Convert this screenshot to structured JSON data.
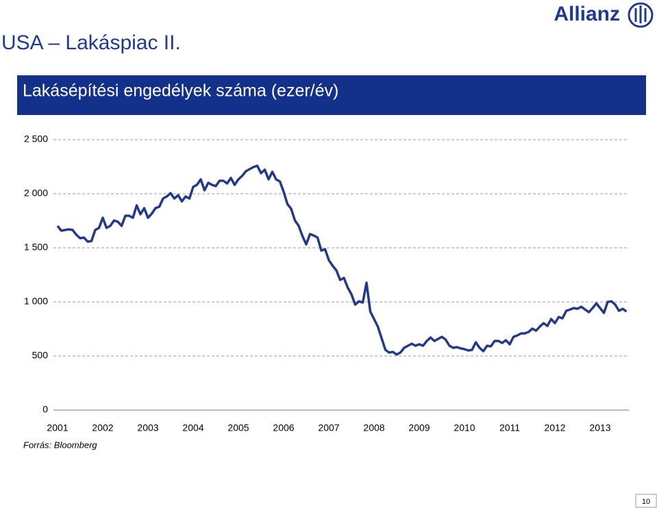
{
  "slide_title": "USA – Lakáspiac II.",
  "logo": "Allianz",
  "source": "Forrás: Bloomberg",
  "page_number": "10",
  "chart_data": {
    "type": "line",
    "title": "Lakásépítési engedélyek száma (ezer/év)",
    "categories": [
      "2001",
      null,
      null,
      null,
      null,
      null,
      null,
      null,
      null,
      null,
      null,
      null,
      "2002",
      null,
      null,
      null,
      null,
      null,
      null,
      null,
      null,
      null,
      null,
      null,
      "2003",
      null,
      null,
      null,
      null,
      null,
      null,
      null,
      null,
      null,
      null,
      null,
      "2004",
      null,
      null,
      null,
      null,
      null,
      null,
      null,
      null,
      null,
      null,
      null,
      "2005",
      null,
      null,
      null,
      null,
      null,
      null,
      null,
      null,
      null,
      null,
      null,
      "2006",
      null,
      null,
      null,
      null,
      null,
      null,
      null,
      null,
      null,
      null,
      null,
      "2007",
      null,
      null,
      null,
      null,
      null,
      null,
      null,
      null,
      null,
      null,
      null,
      "2008",
      null,
      null,
      null,
      null,
      null,
      null,
      null,
      null,
      null,
      null,
      null,
      "2009",
      null,
      null,
      null,
      null,
      null,
      null,
      null,
      null,
      null,
      null,
      null,
      "2010",
      null,
      null,
      null,
      null,
      null,
      null,
      null,
      null,
      null,
      null,
      null,
      "2011",
      null,
      null,
      null,
      null,
      null,
      null,
      null,
      null,
      null,
      null,
      null,
      "2012",
      null,
      null,
      null,
      null,
      null,
      null,
      null,
      null,
      null,
      null,
      null,
      "2013",
      null,
      null,
      null,
      null,
      null,
      null,
      null
    ],
    "series": [
      {
        "color": "#233a8a",
        "values": [
          1703,
          1658,
          1665,
          1671,
          1665,
          1620,
          1589,
          1595,
          1557,
          1563,
          1665,
          1684,
          1778,
          1684,
          1703,
          1753,
          1741,
          1703,
          1797,
          1797,
          1778,
          1892,
          1810,
          1867,
          1778,
          1816,
          1867,
          1880,
          1956,
          1975,
          2006,
          1956,
          1987,
          1930,
          1975,
          1956,
          2063,
          2082,
          2133,
          2032,
          2101,
          2082,
          2070,
          2120,
          2120,
          2095,
          2146,
          2082,
          2133,
          2165,
          2209,
          2228,
          2247,
          2259,
          2190,
          2222,
          2133,
          2203,
          2133,
          2114,
          2019,
          1905,
          1861,
          1753,
          1703,
          1608,
          1532,
          1627,
          1614,
          1595,
          1475,
          1487,
          1386,
          1335,
          1291,
          1203,
          1222,
          1133,
          1070,
          975,
          1006,
          994,
          1177,
          911,
          842,
          772,
          665,
          557,
          532,
          538,
          513,
          532,
          576,
          595,
          614,
          595,
          608,
          595,
          639,
          671,
          639,
          658,
          677,
          652,
          595,
          576,
          582,
          570,
          563,
          551,
          557,
          627,
          576,
          545,
          595,
          589,
          639,
          639,
          620,
          646,
          608,
          677,
          690,
          709,
          709,
          722,
          753,
          734,
          772,
          804,
          778,
          842,
          804,
          861,
          848,
          918,
          930,
          943,
          937,
          956,
          930,
          905,
          943,
          987,
          943,
          899,
          1000,
          1006,
          975,
          918,
          937,
          911
        ]
      }
    ],
    "ylim": [
      0,
      2500
    ],
    "yticks": [
      {
        "value": 0,
        "label": "0"
      },
      {
        "value": 500,
        "label": "500"
      },
      {
        "value": 1000,
        "label": "1 000"
      },
      {
        "value": 1500,
        "label": "1 500"
      },
      {
        "value": 2000,
        "label": "2 000"
      },
      {
        "value": 2500,
        "label": "2 500"
      }
    ],
    "grid": true
  }
}
